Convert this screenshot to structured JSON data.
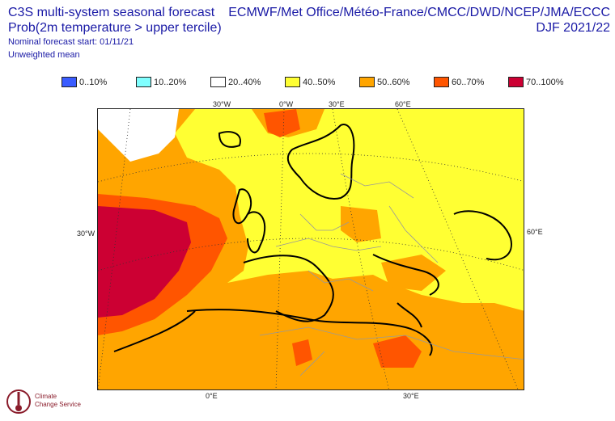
{
  "header": {
    "title_left": "C3S multi-system seasonal forecast",
    "subtitle_left": "Prob(2m temperature > upper tercile)",
    "start_line": "Nominal forecast start: 01/11/21",
    "mean_line": "Unweighted mean",
    "title_right": "ECMWF/Met Office/Météo-France/CMCC/DWD/NCEP/JMA/ECCC",
    "season": "DJF 2021/22"
  },
  "legend": [
    {
      "label": "0..10%",
      "color": "#3a5cff"
    },
    {
      "label": "10..20%",
      "color": "#80ffff"
    },
    {
      "label": "20..40%",
      "color": "#ffffff"
    },
    {
      "label": "40..50%",
      "color": "#ffff33"
    },
    {
      "label": "50..60%",
      "color": "#ffa500"
    },
    {
      "label": "60..70%",
      "color": "#ff5500"
    },
    {
      "label": "70..100%",
      "color": "#cc0033"
    }
  ],
  "map_labels": {
    "top_30w": "30°W",
    "top_0w": "0°W",
    "top_30e": "30°E",
    "top_60e": "60°E",
    "left_30w": "30°W",
    "right_60e": "60°E",
    "bottom_0e": "0°E",
    "bottom_30e": "30°E"
  },
  "logo": {
    "line1": "Climate",
    "line2": "Change Service"
  }
}
